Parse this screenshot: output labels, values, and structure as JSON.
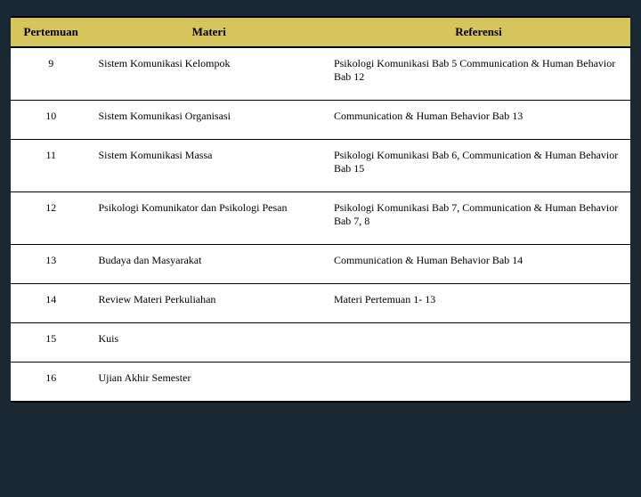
{
  "table": {
    "type": "table",
    "header_bg": "#d6c55a",
    "border_color": "#000000",
    "background_color": "#ffffff",
    "page_background": "#1a2833",
    "font_family": "Georgia, serif",
    "header_fontsize": 13,
    "cell_fontsize": 12,
    "columns": [
      {
        "key": "pertemuan",
        "label": "Pertemuan",
        "width_pct": 13,
        "align": "center"
      },
      {
        "key": "materi",
        "label": "Materi",
        "width_pct": 38,
        "align": "left"
      },
      {
        "key": "referensi",
        "label": "Referensi",
        "width_pct": 49,
        "align": "left"
      }
    ],
    "rows": [
      {
        "pertemuan": "9",
        "materi": "Sistem Komunikasi Kelompok",
        "referensi": "Psikologi Komunikasi Bab 5 Communication & Human Behavior Bab 12"
      },
      {
        "pertemuan": "10",
        "materi": "Sistem Komunikasi Organisasi",
        "referensi": "Communication & Human Behavior Bab 13"
      },
      {
        "pertemuan": "11",
        "materi": "Sistem Komunikasi Massa",
        "referensi": "Psikologi Komunikasi Bab 6, Communication & Human Behavior Bab 15"
      },
      {
        "pertemuan": "12",
        "materi": "Psikologi Komunikator dan Psikologi Pesan",
        "referensi": "Psikologi Komunikasi Bab 7, Communication & Human Behavior Bab 7, 8"
      },
      {
        "pertemuan": "13",
        "materi": "Budaya dan Masyarakat",
        "referensi": "Communication & Human Behavior Bab 14"
      },
      {
        "pertemuan": "14",
        "materi": "Review Materi Perkuliahan",
        "referensi": "Materi Pertemuan 1- 13"
      },
      {
        "pertemuan": "15",
        "materi": "Kuis",
        "referensi": ""
      },
      {
        "pertemuan": "16",
        "materi": "Ujian Akhir Semester",
        "referensi": ""
      }
    ]
  }
}
